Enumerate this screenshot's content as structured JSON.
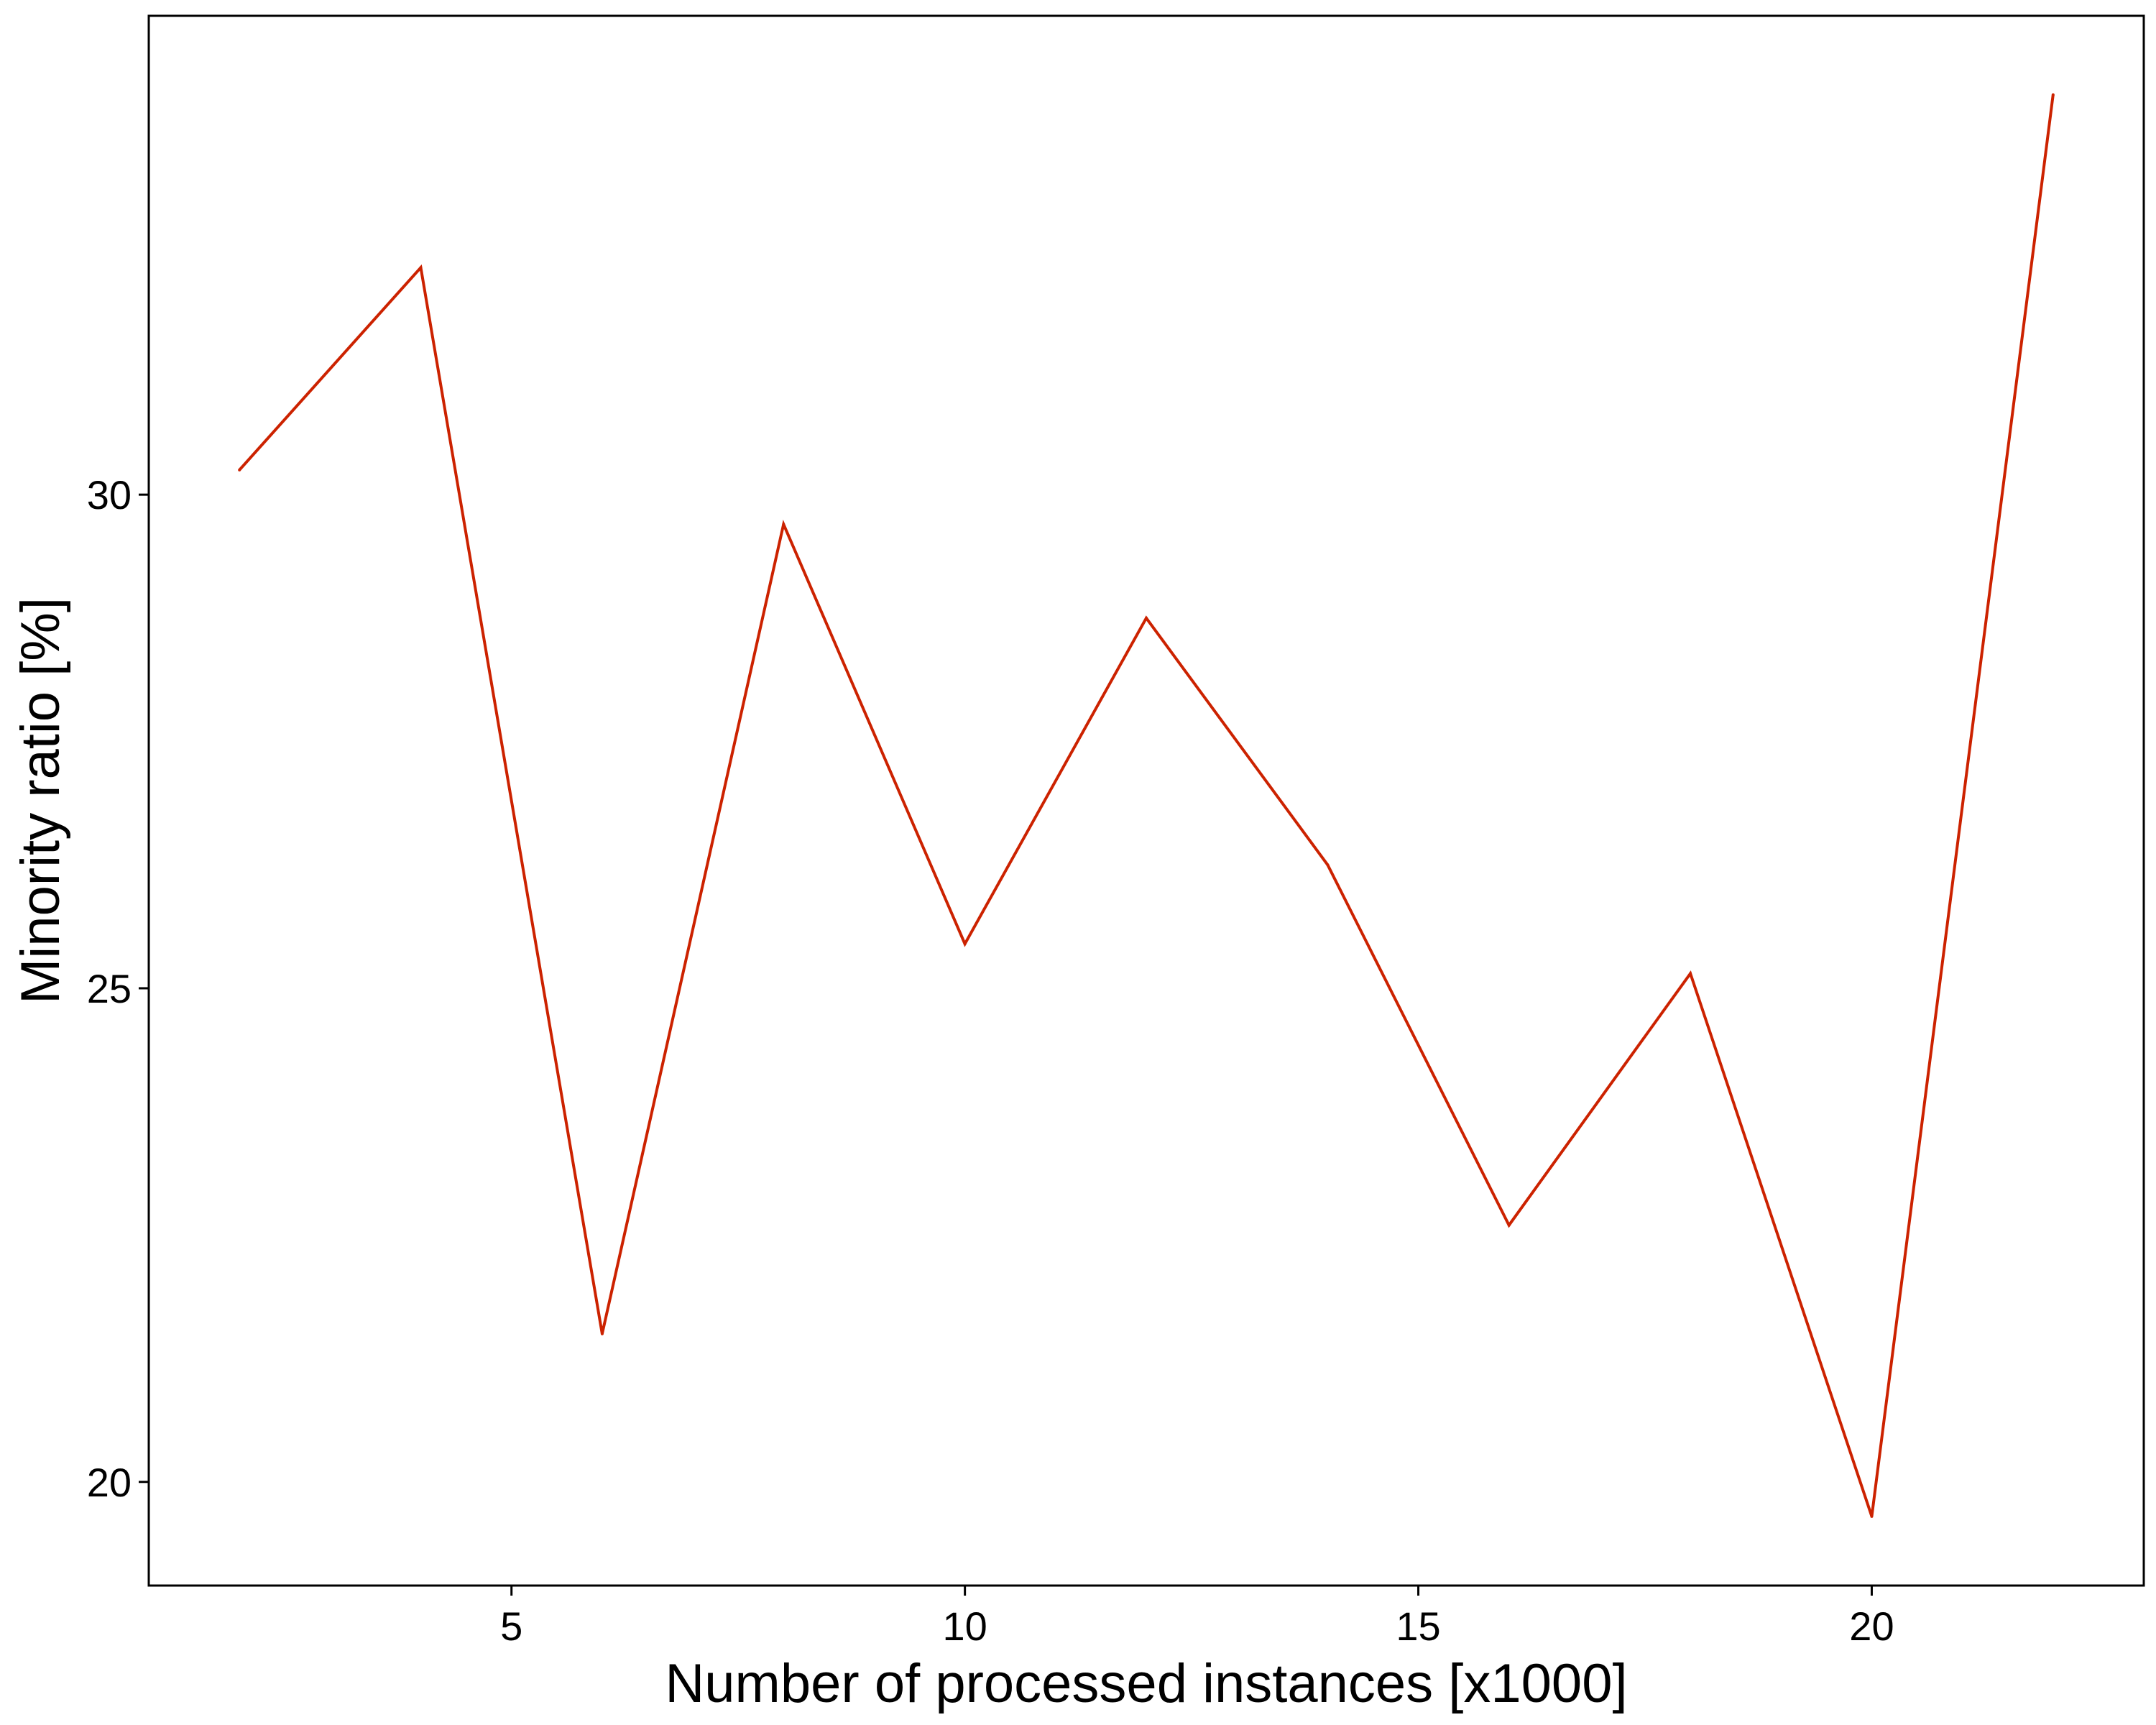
{
  "chart_data": {
    "type": "line",
    "title": "",
    "xlabel": "Number of processed instances [x1000]",
    "ylabel": "Minority ratio [%]",
    "xlim": [
      1.0,
      23.0
    ],
    "ylim": [
      18.95,
      34.85
    ],
    "x_ticks": [
      5,
      10,
      15,
      20
    ],
    "y_ticks": [
      20,
      25,
      30
    ],
    "grid": false,
    "legend": "none",
    "series": [
      {
        "color": "#cc2200",
        "points": [
          {
            "x": 2,
            "y": 30.25
          },
          {
            "x": 4,
            "y": 32.3
          },
          {
            "x": 6,
            "y": 21.5
          },
          {
            "x": 8,
            "y": 29.7
          },
          {
            "x": 10,
            "y": 25.45
          },
          {
            "x": 12,
            "y": 28.75
          },
          {
            "x": 14,
            "y": 26.25
          },
          {
            "x": 16,
            "y": 22.6
          },
          {
            "x": 18,
            "y": 25.15
          },
          {
            "x": 20,
            "y": 19.65
          },
          {
            "x": 22,
            "y": 34.05
          }
        ]
      }
    ]
  }
}
